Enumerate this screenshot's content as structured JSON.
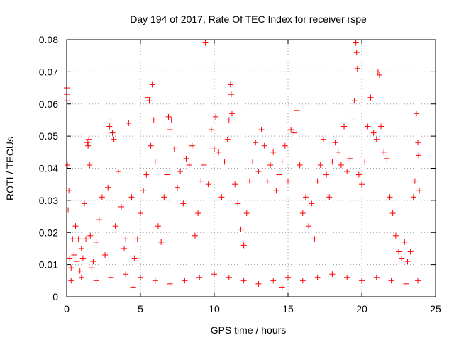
{
  "chart_data": {
    "type": "scatter",
    "title": "Day 194 of 2017, Rate Of TEC Index for receiver rspe",
    "xlabel": "GPS time / hours",
    "ylabel": "ROTI / TECUs",
    "xlim": [
      0,
      25
    ],
    "ylim": [
      0,
      0.08
    ],
    "xticks": [
      0,
      5,
      10,
      15,
      20,
      25
    ],
    "xtick_labels": [
      "0",
      "5",
      "10",
      "15",
      "20",
      "25"
    ],
    "yticks": [
      0,
      0.01,
      0.02,
      0.03,
      0.04,
      0.05,
      0.06,
      0.07,
      0.08
    ],
    "ytick_labels": [
      "0",
      "0.01",
      "0.02",
      "0.03",
      "0.04",
      "0.05",
      "0.06",
      "0.07",
      "0.08"
    ],
    "grid": true,
    "marker": "+",
    "marker_color": "#ff0000",
    "series": [
      {
        "points": [
          [
            0.0,
            0.065
          ],
          [
            0.0,
            0.063
          ],
          [
            0.02,
            0.061
          ],
          [
            0.05,
            0.041
          ],
          [
            0.1,
            0.027
          ],
          [
            0.15,
            0.033
          ],
          [
            0.2,
            0.012
          ],
          [
            0.3,
            0.009
          ],
          [
            0.4,
            0.018
          ],
          [
            0.5,
            0.013
          ],
          [
            0.6,
            0.022
          ],
          [
            0.7,
            0.011
          ],
          [
            0.8,
            0.018
          ],
          [
            0.9,
            0.008
          ],
          [
            1.0,
            0.015
          ],
          [
            1.1,
            0.012
          ],
          [
            1.2,
            0.029
          ],
          [
            1.3,
            0.018
          ],
          [
            1.4,
            0.048
          ],
          [
            1.45,
            0.047
          ],
          [
            1.5,
            0.049
          ],
          [
            1.55,
            0.041
          ],
          [
            1.6,
            0.019
          ],
          [
            1.7,
            0.009
          ],
          [
            1.8,
            0.011
          ],
          [
            2.0,
            0.017
          ],
          [
            2.2,
            0.024
          ],
          [
            2.4,
            0.031
          ],
          [
            2.6,
            0.013
          ],
          [
            2.8,
            0.034
          ],
          [
            2.9,
            0.053
          ],
          [
            3.0,
            0.055
          ],
          [
            3.1,
            0.051
          ],
          [
            3.2,
            0.049
          ],
          [
            3.3,
            0.022
          ],
          [
            3.5,
            0.039
          ],
          [
            3.7,
            0.028
          ],
          [
            3.9,
            0.015
          ],
          [
            4.0,
            0.018
          ],
          [
            4.2,
            0.054
          ],
          [
            4.4,
            0.031
          ],
          [
            4.6,
            0.012
          ],
          [
            4.8,
            0.018
          ],
          [
            5.0,
            0.026
          ],
          [
            5.2,
            0.033
          ],
          [
            5.4,
            0.038
          ],
          [
            5.5,
            0.062
          ],
          [
            5.6,
            0.061
          ],
          [
            5.7,
            0.047
          ],
          [
            5.8,
            0.066
          ],
          [
            5.9,
            0.055
          ],
          [
            6.0,
            0.042
          ],
          [
            6.2,
            0.022
          ],
          [
            6.4,
            0.017
          ],
          [
            6.6,
            0.031
          ],
          [
            6.8,
            0.038
          ],
          [
            6.9,
            0.056
          ],
          [
            7.0,
            0.052
          ],
          [
            7.1,
            0.055
          ],
          [
            7.3,
            0.046
          ],
          [
            7.5,
            0.034
          ],
          [
            7.7,
            0.039
          ],
          [
            7.9,
            0.029
          ],
          [
            8.1,
            0.043
          ],
          [
            8.3,
            0.041
          ],
          [
            8.5,
            0.047
          ],
          [
            8.7,
            0.019
          ],
          [
            8.9,
            0.026
          ],
          [
            9.1,
            0.036
          ],
          [
            9.3,
            0.041
          ],
          [
            9.4,
            0.079
          ],
          [
            9.6,
            0.035
          ],
          [
            9.8,
            0.052
          ],
          [
            10.0,
            0.046
          ],
          [
            10.1,
            0.056
          ],
          [
            10.3,
            0.045
          ],
          [
            10.5,
            0.031
          ],
          [
            10.7,
            0.042
          ],
          [
            10.9,
            0.049
          ],
          [
            11.0,
            0.055
          ],
          [
            11.1,
            0.066
          ],
          [
            11.15,
            0.063
          ],
          [
            11.2,
            0.057
          ],
          [
            11.4,
            0.035
          ],
          [
            11.6,
            0.029
          ],
          [
            11.8,
            0.021
          ],
          [
            12.0,
            0.016
          ],
          [
            12.2,
            0.026
          ],
          [
            12.4,
            0.036
          ],
          [
            12.6,
            0.042
          ],
          [
            12.8,
            0.048
          ],
          [
            13.0,
            0.039
          ],
          [
            13.2,
            0.052
          ],
          [
            13.4,
            0.047
          ],
          [
            13.6,
            0.036
          ],
          [
            13.8,
            0.041
          ],
          [
            14.0,
            0.045
          ],
          [
            14.2,
            0.033
          ],
          [
            14.4,
            0.038
          ],
          [
            14.6,
            0.042
          ],
          [
            14.8,
            0.047
          ],
          [
            15.0,
            0.036
          ],
          [
            15.2,
            0.052
          ],
          [
            15.4,
            0.051
          ],
          [
            15.6,
            0.058
          ],
          [
            15.8,
            0.041
          ],
          [
            16.0,
            0.026
          ],
          [
            16.2,
            0.031
          ],
          [
            16.4,
            0.022
          ],
          [
            16.6,
            0.029
          ],
          [
            16.8,
            0.018
          ],
          [
            17.0,
            0.036
          ],
          [
            17.2,
            0.041
          ],
          [
            17.4,
            0.049
          ],
          [
            17.6,
            0.038
          ],
          [
            17.8,
            0.031
          ],
          [
            18.0,
            0.042
          ],
          [
            18.2,
            0.048
          ],
          [
            18.4,
            0.045
          ],
          [
            18.6,
            0.041
          ],
          [
            18.8,
            0.053
          ],
          [
            19.0,
            0.039
          ],
          [
            19.2,
            0.043
          ],
          [
            19.4,
            0.055
          ],
          [
            19.5,
            0.061
          ],
          [
            19.6,
            0.079
          ],
          [
            19.65,
            0.076
          ],
          [
            19.7,
            0.071
          ],
          [
            19.8,
            0.038
          ],
          [
            20.0,
            0.035
          ],
          [
            20.2,
            0.042
          ],
          [
            20.4,
            0.053
          ],
          [
            20.6,
            0.062
          ],
          [
            20.8,
            0.051
          ],
          [
            21.0,
            0.049
          ],
          [
            21.1,
            0.07
          ],
          [
            21.2,
            0.069
          ],
          [
            21.3,
            0.053
          ],
          [
            21.5,
            0.045
          ],
          [
            21.7,
            0.043
          ],
          [
            21.9,
            0.031
          ],
          [
            22.1,
            0.026
          ],
          [
            22.3,
            0.019
          ],
          [
            22.5,
            0.014
          ],
          [
            22.7,
            0.012
          ],
          [
            22.9,
            0.017
          ],
          [
            23.1,
            0.011
          ],
          [
            23.3,
            0.014
          ],
          [
            23.5,
            0.031
          ],
          [
            23.6,
            0.036
          ],
          [
            23.7,
            0.057
          ],
          [
            23.8,
            0.048
          ],
          [
            23.85,
            0.044
          ],
          [
            23.9,
            0.033
          ],
          [
            0.3,
            0.005
          ],
          [
            1.0,
            0.006
          ],
          [
            2.0,
            0.005
          ],
          [
            3.0,
            0.006
          ],
          [
            4.0,
            0.007
          ],
          [
            4.5,
            0.003
          ],
          [
            5.0,
            0.006
          ],
          [
            6.0,
            0.005
          ],
          [
            7.0,
            0.004
          ],
          [
            8.0,
            0.005
          ],
          [
            9.0,
            0.006
          ],
          [
            10.0,
            0.007
          ],
          [
            11.0,
            0.006
          ],
          [
            12.0,
            0.005
          ],
          [
            13.0,
            0.004
          ],
          [
            14.0,
            0.005
          ],
          [
            14.6,
            0.003
          ],
          [
            15.0,
            0.006
          ],
          [
            16.0,
            0.005
          ],
          [
            17.0,
            0.006
          ],
          [
            18.0,
            0.007
          ],
          [
            19.0,
            0.006
          ],
          [
            20.0,
            0.005
          ],
          [
            21.0,
            0.006
          ],
          [
            22.0,
            0.005
          ],
          [
            23.0,
            0.004
          ],
          [
            23.8,
            0.005
          ]
        ]
      }
    ]
  }
}
